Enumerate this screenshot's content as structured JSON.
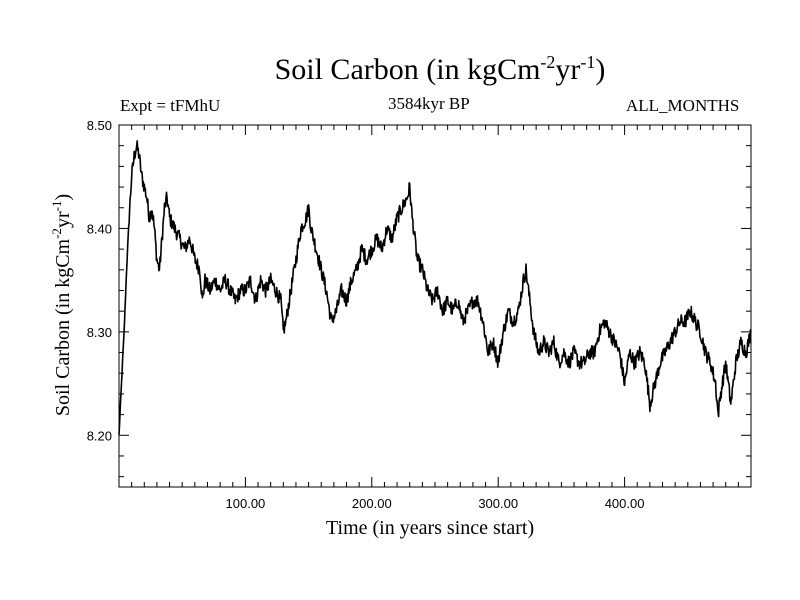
{
  "title": {
    "main": "Soil Carbon (in kgCm",
    "exp1": "-2",
    "mid": "yr",
    "exp2": "-1",
    "close": ")"
  },
  "subtitles": {
    "left": "Expt = tFMhU",
    "center": "3584kyr BP",
    "right": "ALL_MONTHS"
  },
  "chart_data": {
    "type": "line",
    "title": "Soil Carbon (in kgCm-2yr-1)",
    "xlabel": "Time (in years since start)",
    "ylabel": {
      "main": "Soil Carbon (in kgCm",
      "exp1": "-2",
      "mid": "yr",
      "exp2": "-1",
      "close": ")"
    },
    "xlim": [
      0,
      500
    ],
    "ylim": [
      8.15,
      8.5
    ],
    "xticks": [
      100,
      200,
      300,
      400
    ],
    "xtick_labels": [
      "100.00",
      "200.00",
      "300.00",
      "400.00"
    ],
    "yticks": [
      8.2,
      8.3,
      8.4,
      8.5
    ],
    "ytick_labels": [
      "8.20",
      "8.30",
      "8.40",
      "8.50"
    ],
    "grid": false,
    "series": [
      {
        "name": "Soil Carbon",
        "color": "#000000",
        "x": [
          0,
          2,
          4,
          6,
          8,
          10,
          12,
          14,
          16,
          18,
          20,
          22,
          24,
          26,
          28,
          30,
          32,
          34,
          36,
          38,
          40,
          44,
          48,
          52,
          56,
          60,
          64,
          66,
          68,
          72,
          76,
          80,
          84,
          88,
          92,
          96,
          100,
          104,
          108,
          112,
          116,
          120,
          124,
          128,
          130,
          132,
          136,
          140,
          144,
          148,
          150,
          152,
          156,
          160,
          164,
          168,
          172,
          176,
          180,
          184,
          188,
          192,
          196,
          200,
          204,
          208,
          212,
          216,
          220,
          224,
          228,
          230,
          232,
          236,
          240,
          244,
          248,
          252,
          256,
          260,
          264,
          268,
          272,
          276,
          280,
          284,
          288,
          292,
          296,
          300,
          304,
          308,
          312,
          316,
          320,
          322,
          324,
          328,
          332,
          336,
          340,
          344,
          348,
          352,
          356,
          360,
          364,
          368,
          372,
          376,
          380,
          384,
          388,
          392,
          396,
          400,
          404,
          408,
          412,
          416,
          420,
          424,
          428,
          432,
          436,
          440,
          444,
          448,
          452,
          456,
          460,
          464,
          468,
          472,
          474,
          476,
          480,
          484,
          488,
          492,
          496,
          500
        ],
        "values": [
          8.2,
          8.25,
          8.3,
          8.36,
          8.41,
          8.45,
          8.47,
          8.48,
          8.47,
          8.45,
          8.44,
          8.43,
          8.41,
          8.42,
          8.4,
          8.37,
          8.36,
          8.39,
          8.42,
          8.43,
          8.41,
          8.4,
          8.39,
          8.38,
          8.39,
          8.37,
          8.36,
          8.33,
          8.35,
          8.34,
          8.35,
          8.34,
          8.35,
          8.34,
          8.33,
          8.34,
          8.34,
          8.35,
          8.33,
          8.35,
          8.34,
          8.35,
          8.34,
          8.33,
          8.3,
          8.31,
          8.34,
          8.37,
          8.4,
          8.41,
          8.42,
          8.4,
          8.38,
          8.36,
          8.34,
          8.31,
          8.32,
          8.34,
          8.33,
          8.35,
          8.36,
          8.38,
          8.37,
          8.38,
          8.39,
          8.38,
          8.4,
          8.39,
          8.41,
          8.42,
          8.43,
          8.44,
          8.41,
          8.37,
          8.36,
          8.34,
          8.33,
          8.34,
          8.32,
          8.33,
          8.32,
          8.33,
          8.31,
          8.32,
          8.33,
          8.33,
          8.31,
          8.28,
          8.29,
          8.27,
          8.3,
          8.32,
          8.31,
          8.32,
          8.35,
          8.36,
          8.34,
          8.3,
          8.28,
          8.29,
          8.28,
          8.29,
          8.27,
          8.28,
          8.27,
          8.28,
          8.27,
          8.27,
          8.28,
          8.28,
          8.3,
          8.31,
          8.3,
          8.29,
          8.28,
          8.25,
          8.28,
          8.27,
          8.28,
          8.27,
          8.23,
          8.25,
          8.27,
          8.28,
          8.29,
          8.3,
          8.31,
          8.31,
          8.32,
          8.31,
          8.3,
          8.28,
          8.27,
          8.25,
          8.22,
          8.24,
          8.27,
          8.23,
          8.27,
          8.29,
          8.28,
          8.3
        ]
      }
    ]
  }
}
